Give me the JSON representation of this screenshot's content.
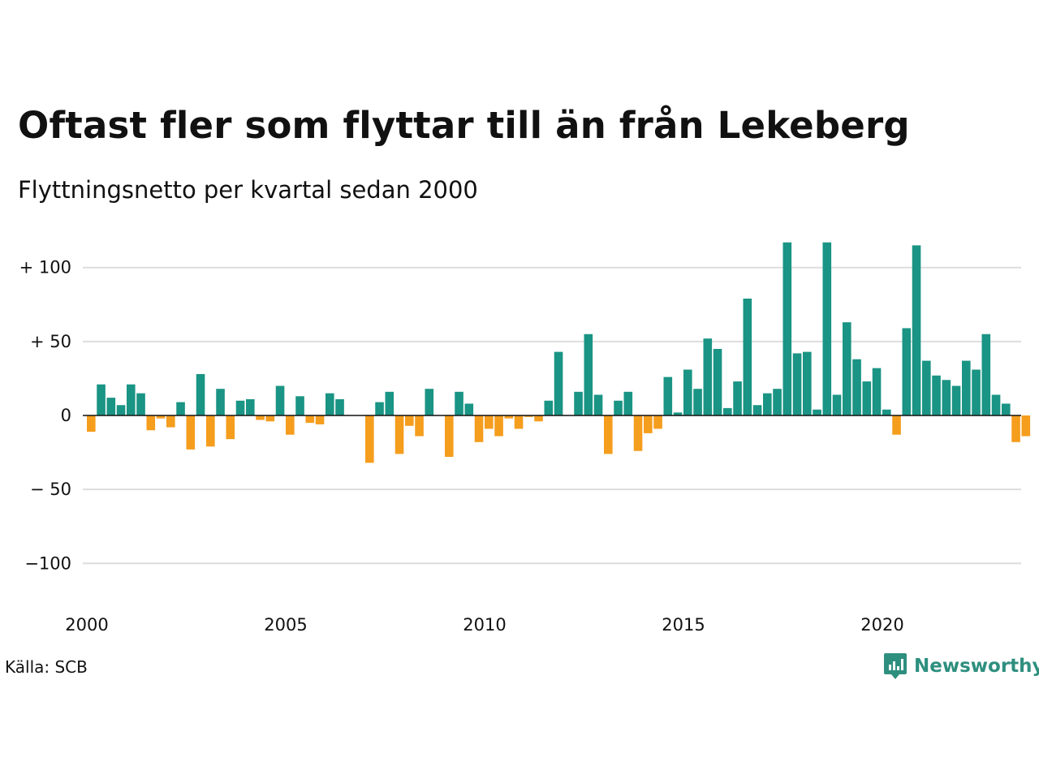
{
  "header": {
    "title": "Oftast fler som flyttar till än från Lekeberg",
    "subtitle": "Flyttningsnetto per kvartal sedan 2000"
  },
  "footer": {
    "source": "Källa: SCB",
    "logo_text": "Newsworthy",
    "logo_icon": "newsworthy-chart-icon"
  },
  "colors": {
    "positive": "#1a9484",
    "negative": "#f59d1d",
    "grid": "#dddddd",
    "zero_line": "#111111",
    "logo": "#2e8f7f"
  },
  "chart_data": {
    "type": "bar",
    "title": "Oftast fler som flyttar till än från Lekeberg",
    "subtitle": "Flyttningsnetto per kvartal sedan 2000",
    "xlabel": "",
    "ylabel": "",
    "x_start": 2000,
    "periods_per_year": 4,
    "ylim": [
      -125,
      125
    ],
    "y_ticks": [
      100,
      50,
      0,
      -50,
      -100
    ],
    "y_tick_labels": [
      "+ 100",
      "+  50",
      "0",
      "− 50",
      "−100"
    ],
    "x_ticks": [
      2000,
      2005,
      2010,
      2015,
      2020
    ],
    "x_tick_labels": [
      "2000",
      "2005",
      "2010",
      "2015",
      "2020"
    ],
    "grid": true,
    "legend": false,
    "values": [
      -11,
      21,
      12,
      7,
      21,
      15,
      -10,
      -2,
      -8,
      9,
      -23,
      28,
      -21,
      18,
      -16,
      10,
      11,
      -3,
      -4,
      20,
      -13,
      13,
      -5,
      -6,
      15,
      11,
      0,
      0,
      -32,
      9,
      16,
      -26,
      -7,
      -14,
      18,
      0,
      -28,
      16,
      8,
      -18,
      -9,
      -14,
      -2,
      -9,
      -1,
      -4,
      10,
      43,
      0,
      16,
      55,
      14,
      -26,
      10,
      16,
      -24,
      -12,
      -9,
      26,
      2,
      31,
      18,
      52,
      45,
      5,
      23,
      79,
      7,
      15,
      18,
      117,
      42,
      43,
      4,
      117,
      14,
      63,
      38,
      23,
      32,
      4,
      -13,
      59,
      115,
      37,
      27,
      24,
      20,
      37,
      31,
      55,
      14,
      8,
      -18,
      -14
    ]
  }
}
